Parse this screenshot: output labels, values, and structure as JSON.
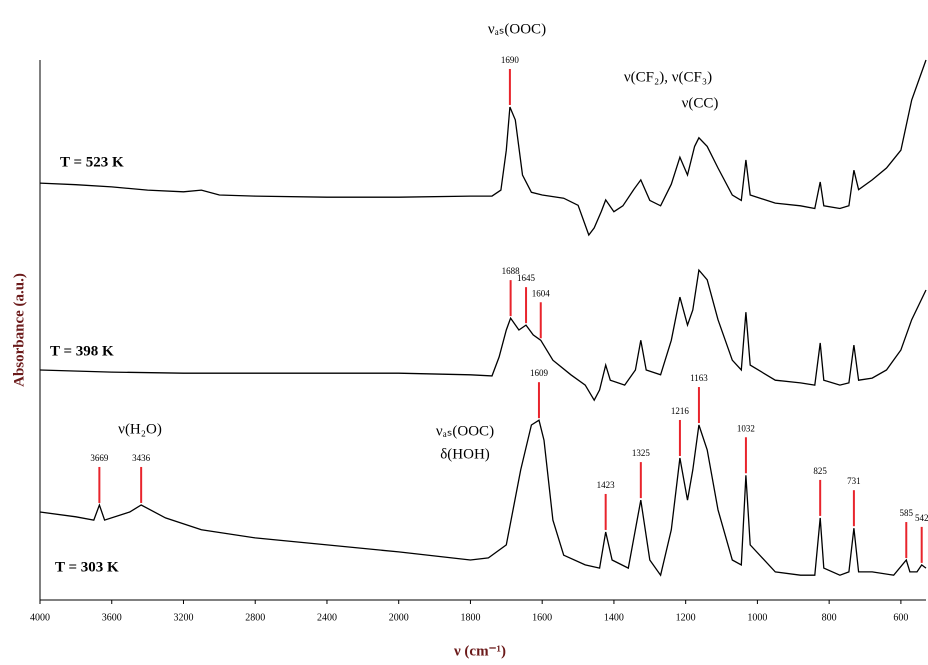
{
  "chart_data": {
    "type": "line",
    "x_label": "ν (cm⁻¹)",
    "y_label": "Absorbance (a.u.)",
    "xlim": [
      4000,
      530
    ],
    "xticks": [
      4000,
      3600,
      3200,
      2800,
      2400,
      2000,
      1800,
      1600,
      1400,
      1200,
      1000,
      800,
      600
    ],
    "ylim": [
      0,
      100
    ],
    "peak_color": "#e8242c",
    "annotations": [
      "νₐₛ(OOC)",
      "ν(CF₂), ν(CF₃)",
      "ν(CC)",
      "ν(H₂O)",
      "νₐₛ(OOC)",
      "δ(HOH)"
    ],
    "series": [
      {
        "name": "T = 523 K",
        "color": "#000000",
        "peaks": [
          1690
        ],
        "x": [
          4000,
          3800,
          3600,
          3400,
          3200,
          3100,
          3000,
          2800,
          2400,
          2000,
          1800,
          1740,
          1715,
          1700,
          1690,
          1675,
          1655,
          1630,
          1600,
          1540,
          1500,
          1470,
          1455,
          1435,
          1423,
          1400,
          1375,
          1345,
          1325,
          1300,
          1270,
          1240,
          1216,
          1195,
          1175,
          1163,
          1140,
          1110,
          1070,
          1045,
          1032,
          1020,
          950,
          880,
          840,
          825,
          815,
          770,
          745,
          731,
          718,
          680,
          640,
          600,
          570,
          530
        ],
        "values": [
          77.2,
          76.9,
          76.5,
          75.9,
          75.6,
          75.9,
          75.0,
          74.8,
          74.6,
          74.6,
          74.8,
          74.8,
          75.9,
          83.3,
          91.3,
          88.9,
          78.7,
          75.5,
          75.0,
          74.4,
          73.1,
          67.6,
          68.9,
          72.0,
          74.1,
          71.9,
          73.0,
          76.0,
          77.8,
          74.0,
          73.0,
          77.0,
          82.0,
          78.7,
          84.0,
          85.6,
          84.0,
          80.0,
          75.0,
          74.0,
          81.5,
          75.0,
          73.5,
          73.0,
          72.5,
          77.4,
          73.0,
          72.5,
          73.0,
          79.6,
          76.0,
          77.8,
          80.0,
          83.3,
          92.6,
          100
        ]
      },
      {
        "name": "T = 398 K",
        "color": "#000000",
        "peaks": [
          1688,
          1645,
          1604
        ],
        "x": [
          4000,
          3600,
          3200,
          2800,
          2400,
          2000,
          1800,
          1740,
          1720,
          1700,
          1688,
          1665,
          1645,
          1625,
          1604,
          1570,
          1520,
          1480,
          1455,
          1440,
          1423,
          1410,
          1370,
          1340,
          1325,
          1310,
          1270,
          1240,
          1216,
          1195,
          1180,
          1163,
          1140,
          1110,
          1070,
          1045,
          1032,
          1020,
          950,
          880,
          840,
          825,
          815,
          770,
          745,
          731,
          718,
          680,
          640,
          600,
          570,
          530
        ],
        "values": [
          42.6,
          42.2,
          42.0,
          42.0,
          42.0,
          42.0,
          41.7,
          41.5,
          45.0,
          50.0,
          52.2,
          50.0,
          50.9,
          49.1,
          48.1,
          44.4,
          41.7,
          39.8,
          37.0,
          38.9,
          43.5,
          40.7,
          39.8,
          42.6,
          48.1,
          42.6,
          41.7,
          48.1,
          56.1,
          50.9,
          53.7,
          61.1,
          59.3,
          51.9,
          44.4,
          42.6,
          53.3,
          43.5,
          40.7,
          40.2,
          39.8,
          47.6,
          40.7,
          39.8,
          40.2,
          47.2,
          40.7,
          41.1,
          42.6,
          46.3,
          51.9,
          57.4
        ]
      },
      {
        "name": "T = 303 K",
        "color": "#000000",
        "peaks": [
          3669,
          3436,
          1609,
          1423,
          1325,
          1216,
          1163,
          1032,
          825,
          731,
          585,
          542
        ],
        "x": [
          4000,
          3800,
          3700,
          3669,
          3640,
          3500,
          3436,
          3300,
          3100,
          2800,
          2400,
          2000,
          1800,
          1750,
          1700,
          1660,
          1630,
          1609,
          1595,
          1570,
          1540,
          1480,
          1440,
          1423,
          1405,
          1360,
          1325,
          1300,
          1270,
          1240,
          1216,
          1195,
          1180,
          1163,
          1140,
          1110,
          1070,
          1045,
          1032,
          1020,
          950,
          880,
          840,
          825,
          815,
          770,
          745,
          731,
          718,
          680,
          620,
          585,
          575,
          555,
          542,
          530
        ],
        "values": [
          16.3,
          15.4,
          14.8,
          17.6,
          14.8,
          16.3,
          17.6,
          15.2,
          13.0,
          11.5,
          10.2,
          8.9,
          7.4,
          7.8,
          10.2,
          24.1,
          32.4,
          33.3,
          29.6,
          14.8,
          8.3,
          6.5,
          5.9,
          12.6,
          7.4,
          5.9,
          18.5,
          7.4,
          4.6,
          13.0,
          26.3,
          18.5,
          24.1,
          32.4,
          27.8,
          16.7,
          7.4,
          6.5,
          23.1,
          10.2,
          5.2,
          4.6,
          4.6,
          15.2,
          5.9,
          4.6,
          5.2,
          13.3,
          5.2,
          5.2,
          4.6,
          7.4,
          5.2,
          5.2,
          6.5,
          5.9
        ]
      }
    ]
  }
}
